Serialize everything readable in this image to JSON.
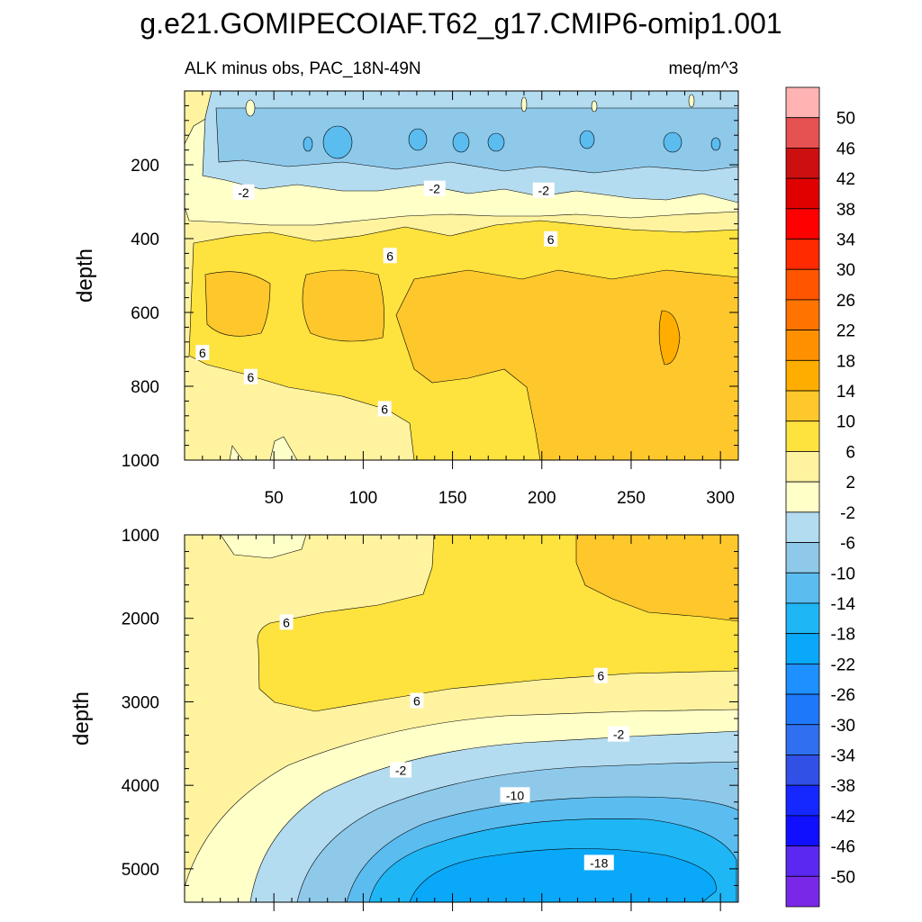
{
  "chart_data": {
    "type": "contour",
    "title": "g.e21.GOMIPECOIAF.T62_g17.CMIP6-omip1.001",
    "subtitle_left": "ALK minus obs, PAC_18N-49N",
    "subtitle_right": "meq/m^3",
    "colorbar": {
      "labels": [
        "50",
        "46",
        "42",
        "38",
        "34",
        "30",
        "26",
        "22",
        "18",
        "14",
        "10",
        "6",
        "2",
        "-2",
        "-6",
        "-10",
        "-14",
        "-18",
        "-22",
        "-26",
        "-30",
        "-34",
        "-38",
        "-42",
        "-46",
        "-50"
      ],
      "colors": [
        "#ffb3b3",
        "#e65151",
        "#cc1010",
        "#e00000",
        "#ff0000",
        "#ff2a00",
        "#ff5500",
        "#ff7300",
        "#ff9100",
        "#ffae00",
        "#fec82c",
        "#fee23e",
        "#fff3a0",
        "#ffffc8",
        "#b4dcf0",
        "#8ec9ea",
        "#5bbcf0",
        "#1eb6f5",
        "#0aa8f8",
        "#1e90ff",
        "#1e78fa",
        "#3070f0",
        "#3050e6",
        "#1428ff",
        "#1010ff",
        "#5a28f0",
        "#7a28e8"
      ]
    },
    "panels": [
      {
        "name": "upper",
        "ylabel": "depth",
        "xlim": [
          0,
          310
        ],
        "ylim": [
          1000,
          0
        ],
        "xticks": [
          50,
          100,
          150,
          200,
          250,
          300
        ],
        "yticks": [
          200,
          400,
          600,
          800,
          1000
        ],
        "contour_labels": [
          {
            "text": "-2",
            "x": 33,
            "y": 275
          },
          {
            "text": "-2",
            "x": 140,
            "y": 265
          },
          {
            "text": "-2",
            "x": 201,
            "y": 270
          },
          {
            "text": "6",
            "x": 205,
            "y": 402
          },
          {
            "text": "6",
            "x": 115,
            "y": 447
          },
          {
            "text": "6",
            "x": 10,
            "y": 710
          },
          {
            "text": "6",
            "x": 37,
            "y": 775
          },
          {
            "text": "6",
            "x": 112,
            "y": 862
          }
        ]
      },
      {
        "name": "lower",
        "ylabel": "depth",
        "xlim": [
          0,
          310
        ],
        "ylim": [
          5400,
          1000
        ],
        "yticks": [
          1000,
          2000,
          3000,
          4000,
          5000
        ],
        "contour_labels": [
          {
            "text": "6",
            "x": 57,
            "y": 2050
          },
          {
            "text": "6",
            "x": 130,
            "y": 2990
          },
          {
            "text": "6",
            "x": 233,
            "y": 2690
          },
          {
            "text": "-2",
            "x": 121,
            "y": 3820
          },
          {
            "text": "-2",
            "x": 243,
            "y": 3390
          },
          {
            "text": "-10",
            "x": 185,
            "y": 4120
          },
          {
            "text": "-18",
            "x": 232,
            "y": 4930
          }
        ]
      }
    ]
  }
}
